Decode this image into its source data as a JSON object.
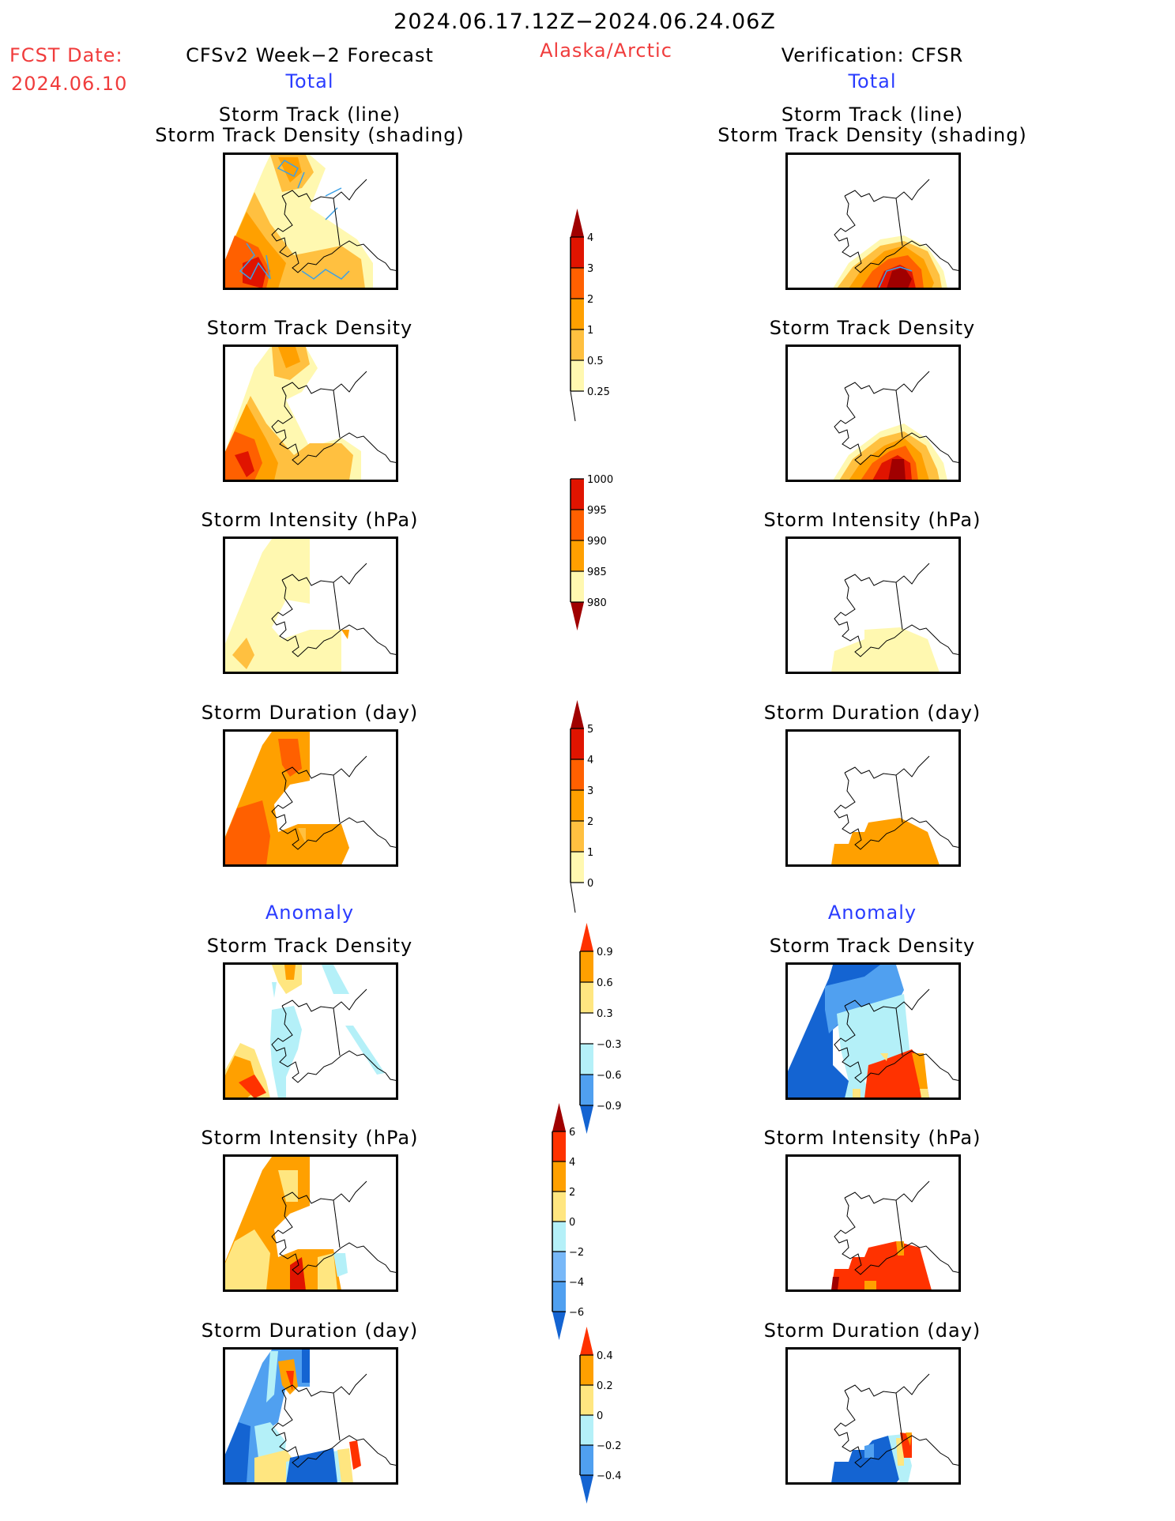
{
  "header": {
    "period": "2024.06.17.12Z−2024.06.24.06Z",
    "fcst_label": "FCST Date:",
    "fcst_date": "2024.06.10",
    "region": "Alaska/Arctic",
    "left_title": "CFSv2 Week−2 Forecast",
    "right_title": "Verification: CFSR",
    "left_total": "Total",
    "right_total": "Total",
    "left_anomaly": "Anomaly",
    "right_anomaly": "Anomaly"
  },
  "panels": {
    "track_line": "Storm Track (line)",
    "track_shading": "Storm Track Density (shading)",
    "density": "Storm Track Density",
    "intensity": "Storm Intensity (hPa)",
    "duration": "Storm Duration (day)"
  },
  "colors": {
    "c1": "#fff8b0",
    "c2": "#ffc040",
    "c3": "#ffa000",
    "c4": "#ff6000",
    "c5": "#e01400",
    "c6": "#a00000",
    "a_pos1": "#ffe680",
    "a_pos2": "#ffa000",
    "a_pos3": "#ff3200",
    "a_pos4": "#a00000",
    "a_neg1": "#b4f0f8",
    "a_neg2": "#78b8f8",
    "a_neg3": "#50a0f0",
    "a_neg4": "#1464d2",
    "track": "#3ca0e6"
  },
  "chart_data": [
    {
      "type": "heatmap",
      "title": "Storm Track Density (shading)",
      "colorbar": {
        "labels": [
          "0.25",
          "0.5",
          "1",
          "2",
          "3",
          "4"
        ]
      }
    },
    {
      "type": "heatmap",
      "title": "Storm Intensity (hPa)",
      "colorbar": {
        "labels": [
          "1000",
          "995",
          "990",
          "985",
          "980"
        ]
      }
    },
    {
      "type": "heatmap",
      "title": "Storm Duration (day)",
      "colorbar": {
        "labels": [
          "0",
          "1",
          "2",
          "3",
          "4",
          "5"
        ]
      }
    },
    {
      "type": "heatmap",
      "title": "Storm Track Density Anomaly",
      "colorbar": {
        "labels": [
          "0.9",
          "0.6",
          "0.3",
          "−0.3",
          "−0.6",
          "−0.9"
        ]
      }
    },
    {
      "type": "heatmap",
      "title": "Storm Intensity Anomaly (hPa)",
      "colorbar": {
        "labels": [
          "6",
          "4",
          "2",
          "0",
          "−2",
          "−4",
          "−6"
        ]
      }
    },
    {
      "type": "heatmap",
      "title": "Storm Duration Anomaly (day)",
      "colorbar": {
        "labels": [
          "0.4",
          "0.2",
          "0",
          "−0.2",
          "−0.4"
        ]
      }
    }
  ]
}
